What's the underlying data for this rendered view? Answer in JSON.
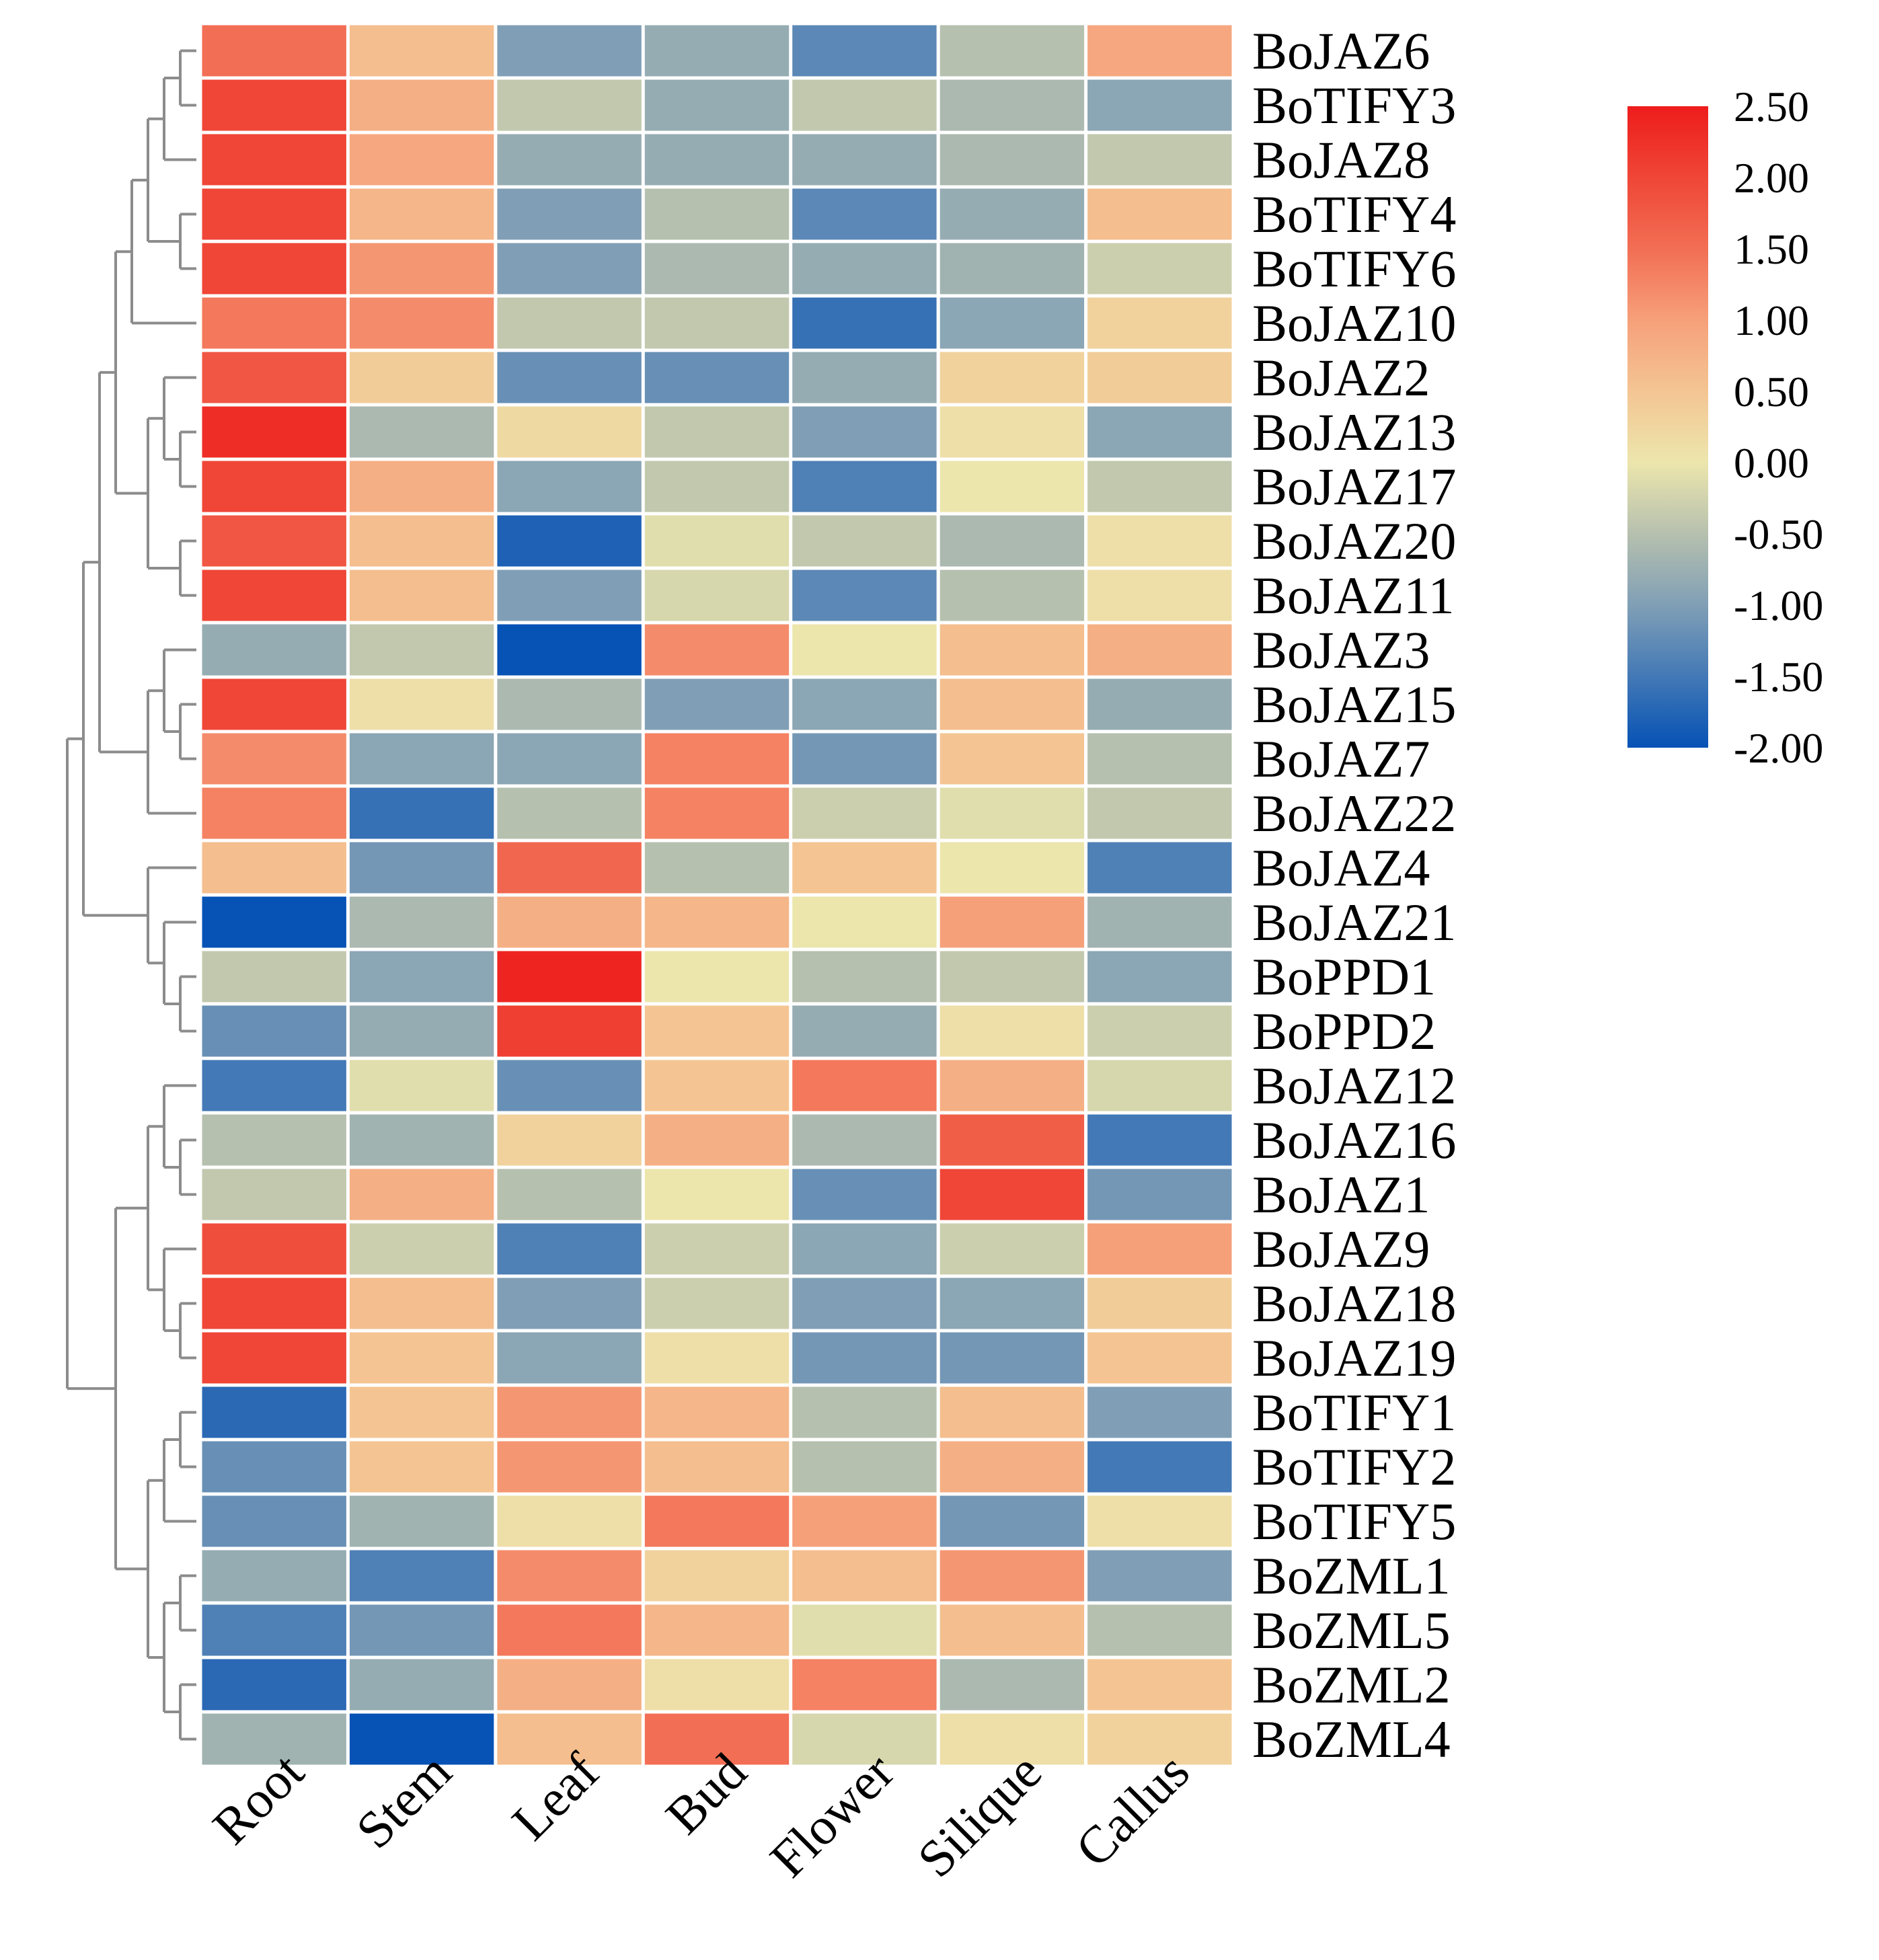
{
  "chart_data": {
    "type": "heatmap",
    "title": "",
    "xlabel": "",
    "ylabel": "",
    "columns": [
      "Root",
      "Stem",
      "Leaf",
      "Bud",
      "Flower",
      "Silique",
      "Callus"
    ],
    "rows": [
      "BoJAZ6",
      "BoTIFY3",
      "BoJAZ8",
      "BoTIFY4",
      "BoTIFY6",
      "BoJAZ10",
      "BoJAZ2",
      "BoJAZ13",
      "BoJAZ17",
      "BoJAZ20",
      "BoJAZ11",
      "BoJAZ3",
      "BoJAZ15",
      "BoJAZ7",
      "BoJAZ22",
      "BoJAZ4",
      "BoJAZ21",
      "BoPPD1",
      "BoPPD2",
      "BoJAZ12",
      "BoJAZ16",
      "BoJAZ1",
      "BoJAZ9",
      "BoJAZ18",
      "BoJAZ19",
      "BoTIFY1",
      "BoTIFY2",
      "BoTIFY5",
      "BoZML1",
      "BoZML5",
      "BoZML2",
      "BoZML4"
    ],
    "values": [
      [
        1.5,
        0.6,
        -1.0,
        -0.8,
        -1.3,
        -0.5,
        0.9
      ],
      [
        2.0,
        0.8,
        -0.4,
        -0.8,
        -0.4,
        -0.6,
        -0.9
      ],
      [
        2.0,
        0.9,
        -0.8,
        -0.8,
        -0.8,
        -0.6,
        -0.4
      ],
      [
        2.0,
        0.7,
        -1.0,
        -0.5,
        -1.3,
        -0.8,
        0.6
      ],
      [
        2.0,
        1.1,
        -1.0,
        -0.6,
        -0.8,
        -0.7,
        -0.3
      ],
      [
        1.4,
        1.2,
        -0.4,
        -0.4,
        -1.6,
        -0.9,
        0.3
      ],
      [
        1.8,
        0.4,
        -1.2,
        -1.2,
        -0.8,
        0.3,
        0.4
      ],
      [
        2.3,
        -0.6,
        0.2,
        -0.4,
        -1.0,
        0.1,
        -0.9
      ],
      [
        2.0,
        0.8,
        -0.9,
        -0.4,
        -1.4,
        0.0,
        -0.4
      ],
      [
        1.8,
        0.6,
        -1.8,
        -0.1,
        -0.4,
        -0.6,
        0.1
      ],
      [
        2.0,
        0.6,
        -1.0,
        -0.2,
        -1.3,
        -0.5,
        0.1
      ],
      [
        -0.8,
        -0.4,
        -2.0,
        1.2,
        0.0,
        0.6,
        0.8
      ],
      [
        2.0,
        0.1,
        -0.6,
        -1.0,
        -0.9,
        0.6,
        -0.8
      ],
      [
        1.2,
        -0.9,
        -0.9,
        1.3,
        -1.1,
        0.5,
        -0.5
      ],
      [
        1.3,
        -1.6,
        -0.5,
        1.3,
        -0.3,
        -0.1,
        -0.4
      ],
      [
        0.6,
        -1.1,
        1.6,
        -0.5,
        0.5,
        0.0,
        -1.4
      ],
      [
        -2.0,
        -0.6,
        0.8,
        0.7,
        0.0,
        1.0,
        -0.7
      ],
      [
        -0.4,
        -0.9,
        2.4,
        0.0,
        -0.5,
        -0.4,
        -0.9
      ],
      [
        -1.2,
        -0.8,
        2.1,
        0.5,
        -0.8,
        0.1,
        -0.3
      ],
      [
        -1.5,
        -0.1,
        -1.2,
        0.5,
        1.4,
        0.8,
        -0.2
      ],
      [
        -0.5,
        -0.7,
        0.3,
        0.8,
        -0.6,
        1.7,
        -1.5
      ],
      [
        -0.4,
        0.8,
        -0.5,
        0.0,
        -1.2,
        2.0,
        -1.1
      ],
      [
        1.9,
        -0.3,
        -1.4,
        -0.3,
        -0.9,
        -0.3,
        1.0
      ],
      [
        2.0,
        0.6,
        -1.0,
        -0.3,
        -1.0,
        -0.9,
        0.4
      ],
      [
        2.0,
        0.5,
        -0.9,
        0.1,
        -1.1,
        -1.1,
        0.5
      ],
      [
        -1.7,
        0.5,
        1.1,
        0.7,
        -0.5,
        0.6,
        -1.0
      ],
      [
        -1.2,
        0.5,
        1.1,
        0.6,
        -0.5,
        0.8,
        -1.5
      ],
      [
        -1.2,
        -0.7,
        0.1,
        1.4,
        1.0,
        -1.1,
        0.1
      ],
      [
        -0.8,
        -1.4,
        1.2,
        0.3,
        0.6,
        1.1,
        -1.0
      ],
      [
        -1.4,
        -1.1,
        1.4,
        0.7,
        -0.1,
        0.6,
        -0.5
      ],
      [
        -1.7,
        -0.8,
        0.8,
        0.1,
        1.3,
        -0.6,
        0.5
      ],
      [
        -0.7,
        -2.0,
        0.6,
        1.5,
        -0.2,
        0.1,
        0.3
      ]
    ],
    "colorbar": {
      "ticks": [
        "2.50",
        "2.00",
        "1.50",
        "1.00",
        "0.50",
        "0.00",
        "-0.50",
        "-1.00",
        "-1.50",
        "-2.00"
      ],
      "min": -2.0,
      "max": 2.5,
      "stops": [
        {
          "value": -2.0,
          "color": "#0652b5"
        },
        {
          "value": -1.0,
          "color": "#809fb6"
        },
        {
          "value": -0.5,
          "color": "#b6c0ae"
        },
        {
          "value": 0.0,
          "color": "#ece6ad"
        },
        {
          "value": 0.5,
          "color": "#f4c593"
        },
        {
          "value": 1.0,
          "color": "#f6a07a"
        },
        {
          "value": 1.5,
          "color": "#f26e54"
        },
        {
          "value": 2.0,
          "color": "#ef4637"
        },
        {
          "value": 2.5,
          "color": "#ee1c1c"
        }
      ]
    },
    "dendrogram_side": "left",
    "legend_position": "top-right"
  }
}
